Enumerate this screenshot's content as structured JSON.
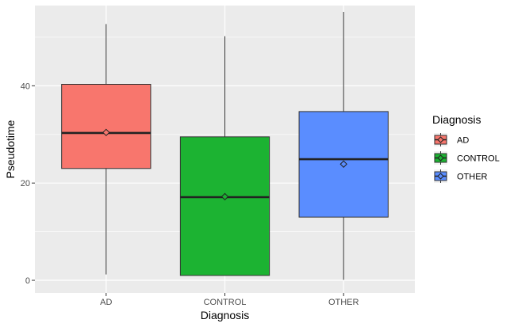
{
  "chart_data": {
    "type": "boxplot",
    "xlabel": "Diagnosis",
    "ylabel": "Pseudotime",
    "categories": [
      "AD",
      "CONTROL",
      "OTHER"
    ],
    "ylim": [
      -2.6,
      56.5
    ],
    "yticks": [
      0,
      20,
      40
    ],
    "grid": true,
    "legend": {
      "title": "Diagnosis",
      "position": "right",
      "entries": [
        "AD",
        "CONTROL",
        "OTHER"
      ]
    },
    "series": [
      {
        "category": "AD",
        "color": "#F8766D",
        "min": 1.2,
        "q1": 23.0,
        "median": 30.3,
        "q3": 40.3,
        "max": 52.7,
        "mean": 30.4
      },
      {
        "category": "CONTROL",
        "color": "#1CB332",
        "min": 1.0,
        "q1": 1.0,
        "median": 17.1,
        "q3": 29.5,
        "max": 50.2,
        "mean": 17.2
      },
      {
        "category": "OTHER",
        "color": "#5A8DFF",
        "min": 0.1,
        "q1": 13.0,
        "median": 24.9,
        "q3": 34.7,
        "max": 55.2,
        "mean": 23.9
      }
    ]
  }
}
